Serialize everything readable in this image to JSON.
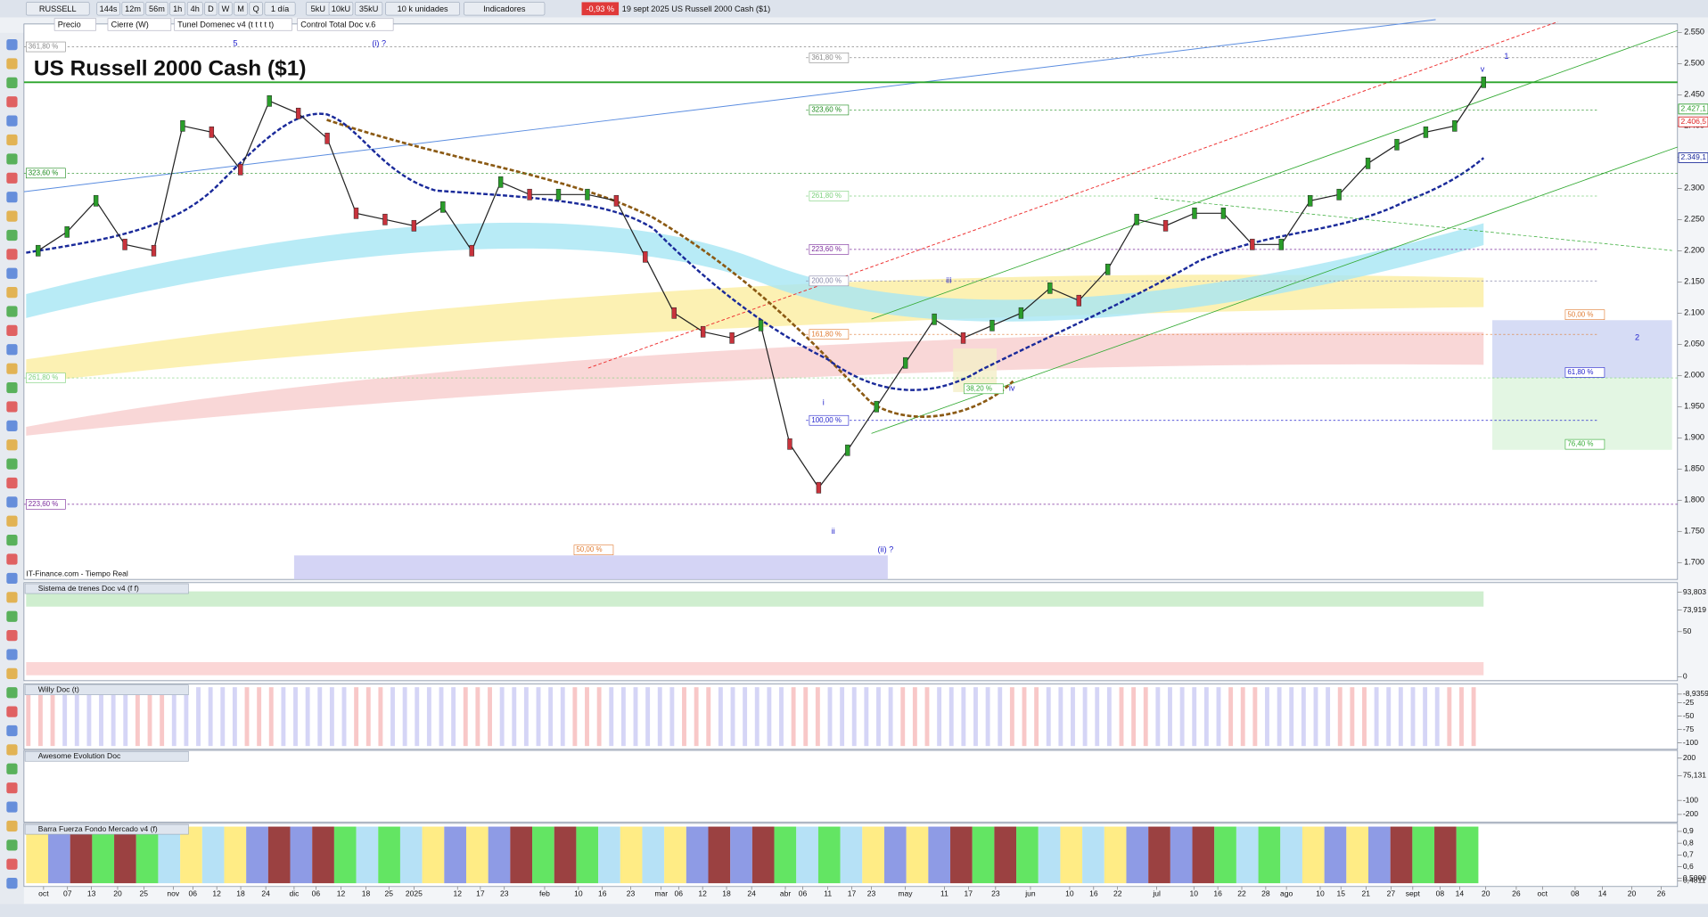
{
  "toolbar": {
    "symbol": "RUSSELL",
    "timeframes": [
      "144s",
      "12m",
      "56m",
      "1h",
      "4h",
      "D",
      "W",
      "M",
      "Q",
      "1 día"
    ],
    "units": [
      "5kU",
      "10kU",
      "35kU"
    ],
    "units_menu": "10 k unidades",
    "indicators": "Indicadores",
    "change": "-0,93 %",
    "info": "19 sept 2025 US Russell 2000 Cash ($1)"
  },
  "legend_bar": [
    "Precio",
    "Cierre (W)",
    "Tunel Domenec v4 (t t t t t)",
    "Control Total Doc v.6"
  ],
  "chart": {
    "title": "US Russell 2000 Cash ($1)",
    "source": "IT-Finance.com - Tiempo Real",
    "close": [
      2200,
      2230,
      2280,
      2210,
      2200,
      2400,
      2390,
      2330,
      2440,
      2420,
      2380,
      2260,
      2250,
      2240,
      2270,
      2200,
      2310,
      2290,
      2290,
      2290,
      2280,
      2190,
      2100,
      2070,
      2060,
      2080,
      1890,
      1820,
      1880,
      1950,
      2020,
      2090,
      2060,
      2080,
      2100,
      2140,
      2120,
      2170,
      2250,
      2240,
      2260,
      2260,
      2210,
      2210,
      2280,
      2290,
      2340,
      2370,
      2390,
      2400,
      2470
    ],
    "ylim": [
      1680,
      2560
    ],
    "yticks": [
      {
        "value": 2550,
        "label": "2.550"
      },
      {
        "value": 2500,
        "label": "2.500"
      },
      {
        "value": 2450,
        "label": "2.450"
      },
      {
        "value": 2400,
        "label": "2.400"
      },
      {
        "value": 2350,
        "label": "2.350"
      },
      {
        "value": 2300,
        "label": "2.300"
      },
      {
        "value": 2250,
        "label": "2.250"
      },
      {
        "value": 2200,
        "label": "2.200"
      },
      {
        "value": 2150,
        "label": "2.150"
      },
      {
        "value": 2100,
        "label": "2.100"
      },
      {
        "value": 2050,
        "label": "2.050"
      },
      {
        "value": 2000,
        "label": "2.000"
      },
      {
        "value": 1950,
        "label": "1.950"
      },
      {
        "value": 1900,
        "label": "1.900"
      },
      {
        "value": 1850,
        "label": "1.850"
      },
      {
        "value": 1800,
        "label": "1.800"
      },
      {
        "value": 1750,
        "label": "1.750"
      },
      {
        "value": 1700,
        "label": "1.700"
      }
    ],
    "price_labels": [
      {
        "value": 2427.1,
        "label": "2.427,1",
        "color": "#2a9d2a"
      },
      {
        "value": 2406.5,
        "label": "2.406,5",
        "color": "#d22"
      },
      {
        "value": 2349.1,
        "label": "2.349,1",
        "color": "#1a2a9a"
      }
    ],
    "level_line": 2470,
    "fib_labels": [
      "361,80 %",
      "361,80 %",
      "323,60 %",
      "323,60 %",
      "261,80 %",
      "261,80 %",
      "223,60 %",
      "223,60 %",
      "200,00 %",
      "161,80 %",
      "100,00 %",
      "50,00 %",
      "50,00 %",
      "61,80 %",
      "76,40 %",
      "38,20 %"
    ],
    "wave_labels": [
      "5",
      "(i) ?",
      "iii",
      "iv",
      "i",
      "ii",
      "(ii) ?",
      "1",
      "2",
      "v"
    ]
  },
  "panels": [
    {
      "title": "Sistema de trenes Doc v4 (f f)",
      "ylim": [
        -2,
        102
      ],
      "ticks": [
        {
          "value": 93.803,
          "label": "93,803"
        },
        {
          "value": 73.919,
          "label": "73,919"
        },
        50,
        0
      ]
    },
    {
      "title": "Willy Doc (t)",
      "ylim": [
        -108,
        6
      ],
      "ticks": [
        {
          "value": -8.9359,
          "label": "-8,9359"
        },
        -25,
        -50,
        -75,
        -100
      ]
    },
    {
      "title": "Awesome Evolution Doc",
      "ylim": [
        -240,
        240
      ],
      "ticks": [
        200,
        {
          "value": 75.131,
          "label": "75,131"
        },
        -100,
        -200
      ]
    },
    {
      "title": "Barra Fuerza Fondo Mercado v4 (f)",
      "ylim": [
        0.45,
        0.95
      ],
      "ticks": [
        {
          "value": 0.9,
          "label": "0,9"
        },
        {
          "value": 0.8,
          "label": "0,8"
        },
        {
          "value": 0.7,
          "label": "0,7"
        },
        {
          "value": 0.6,
          "label": "0,6"
        },
        {
          "value": 0.5,
          "label": "0,5000"
        },
        {
          "value": 0.4811,
          "label": "0,4811"
        }
      ]
    }
  ],
  "x_axis": [
    "oct",
    "07",
    "13",
    "20",
    "25",
    "nov",
    "06",
    "12",
    "18",
    "24",
    "dic",
    "06",
    "12",
    "18",
    "25",
    "2025",
    "12",
    "17",
    "23",
    "feb",
    "10",
    "16",
    "23",
    "mar",
    "06",
    "12",
    "18",
    "24",
    "abr",
    "06",
    "11",
    "17",
    "23",
    "may",
    "11",
    "17",
    "23",
    "jun",
    "10",
    "16",
    "22",
    "jul",
    "10",
    "16",
    "22",
    "28",
    "ago",
    "10",
    "15",
    "21",
    "27",
    "sept",
    "08",
    "14",
    "20",
    "26",
    "oct",
    "08",
    "14",
    "20",
    "26"
  ]
}
